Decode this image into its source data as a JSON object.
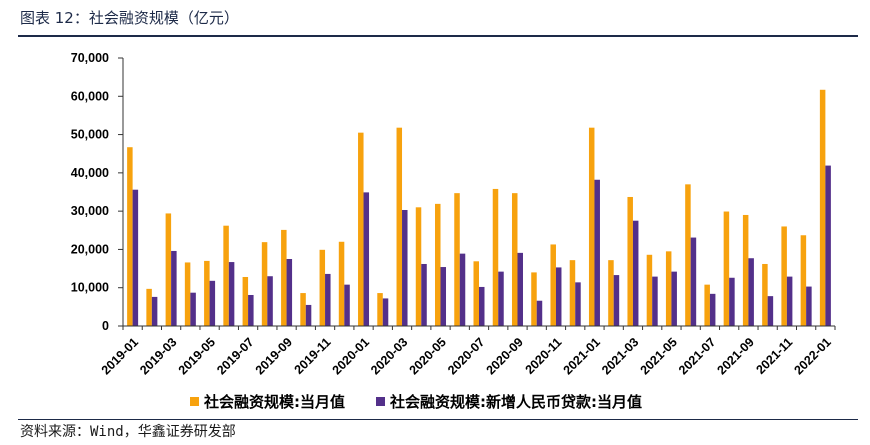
{
  "chart_data": {
    "type": "bar",
    "title": "图表 12：社会融资规模（亿元）",
    "categories": [
      "2019-01",
      "2019-02",
      "2019-03",
      "2019-04",
      "2019-05",
      "2019-06",
      "2019-07",
      "2019-08",
      "2019-09",
      "2019-10",
      "2019-11",
      "2019-12",
      "2020-01",
      "2020-02",
      "2020-03",
      "2020-04",
      "2020-05",
      "2020-06",
      "2020-07",
      "2020-08",
      "2020-09",
      "2020-10",
      "2020-11",
      "2020-12",
      "2021-01",
      "2021-02",
      "2021-03",
      "2021-04",
      "2021-05",
      "2021-06",
      "2021-07",
      "2021-08",
      "2021-09",
      "2021-10",
      "2021-11",
      "2021-12",
      "2022-01"
    ],
    "x_tick_label_interval": 2,
    "ylim": [
      0,
      70000
    ],
    "y_tick_labels": [
      "0",
      "10,000",
      "20,000",
      "30,000",
      "40,000",
      "50,000",
      "60,000",
      "70,000"
    ],
    "grid": false,
    "legend_position": "bottom",
    "series": [
      {
        "name": "社会融资规模:当月值",
        "color": "#F7A20E",
        "values": [
          46700,
          9700,
          29400,
          16600,
          17000,
          26200,
          12800,
          21900,
          25100,
          8600,
          19900,
          22000,
          50500,
          8600,
          51800,
          31000,
          31900,
          34700,
          16900,
          35800,
          34700,
          14000,
          21300,
          17200,
          51800,
          17200,
          33700,
          18600,
          19500,
          37000,
          10800,
          29900,
          29000,
          16200,
          26000,
          23700,
          61700
        ]
      },
      {
        "name": "社会融资规模:新增人民币贷款:当月值",
        "color": "#53308A",
        "values": [
          35600,
          7600,
          19600,
          8700,
          11800,
          16700,
          8100,
          13000,
          17500,
          5500,
          13600,
          10800,
          34900,
          7200,
          30300,
          16200,
          15400,
          18900,
          10200,
          14200,
          19100,
          6600,
          15300,
          11400,
          38200,
          13300,
          27500,
          12900,
          14200,
          23100,
          8400,
          12600,
          17700,
          7800,
          12900,
          10300,
          41900
        ]
      }
    ]
  },
  "footer": {
    "source": "资料来源：Wind，华鑫证券研发部"
  }
}
